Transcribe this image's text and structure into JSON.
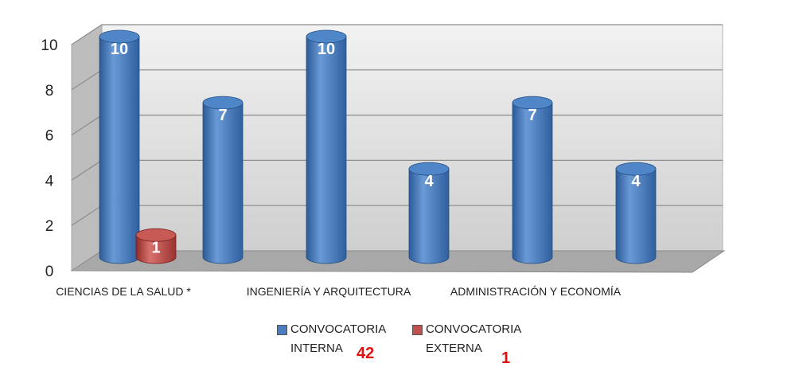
{
  "chart_data": {
    "type": "bar",
    "categories": [
      "CIENCIAS DE LA SALUD *",
      "INGENIERÍA Y ARQUITECTURA",
      "ADMINISTRACIÓN Y ECONOMÍA"
    ],
    "bar_slots": [
      {
        "category": "CIENCIAS DE LA SALUD *",
        "series": "CONVOCATORIA INTERNA",
        "value": 10
      },
      {
        "category": "CIENCIAS DE LA SALUD *",
        "series": "CONVOCATORIA EXTERNA",
        "value": 1
      },
      {
        "category": "",
        "series": "CONVOCATORIA INTERNA",
        "value": 7
      },
      {
        "category": "INGENIERÍA Y ARQUITECTURA",
        "series": "CONVOCATORIA INTERNA",
        "value": 10
      },
      {
        "category": "",
        "series": "CONVOCATORIA INTERNA",
        "value": 4
      },
      {
        "category": "ADMINISTRACIÓN Y ECONOMÍA",
        "series": "CONVOCATORIA INTERNA",
        "value": 7
      },
      {
        "category": "",
        "series": "CONVOCATORIA INTERNA",
        "value": 4
      }
    ],
    "series": [
      {
        "name": "CONVOCATORIA INTERNA",
        "color": "#4a7ec0",
        "total": "42"
      },
      {
        "name": "CONVOCATORIA EXTERNA",
        "color": "#c0504d",
        "total": "1"
      }
    ],
    "yticks": [
      "0",
      "2",
      "4",
      "6",
      "8",
      "10"
    ],
    "ylim": [
      0,
      10
    ],
    "grid": true,
    "legend_position": "bottom",
    "style": "3d-cylinder"
  },
  "legend": {
    "interna_line1": "CONVOCATORIA",
    "interna_line2": "INTERNA",
    "interna_total": "42",
    "externa_line1": "CONVOCATORIA",
    "externa_line2": "EXTERNA",
    "externa_total": "1"
  }
}
